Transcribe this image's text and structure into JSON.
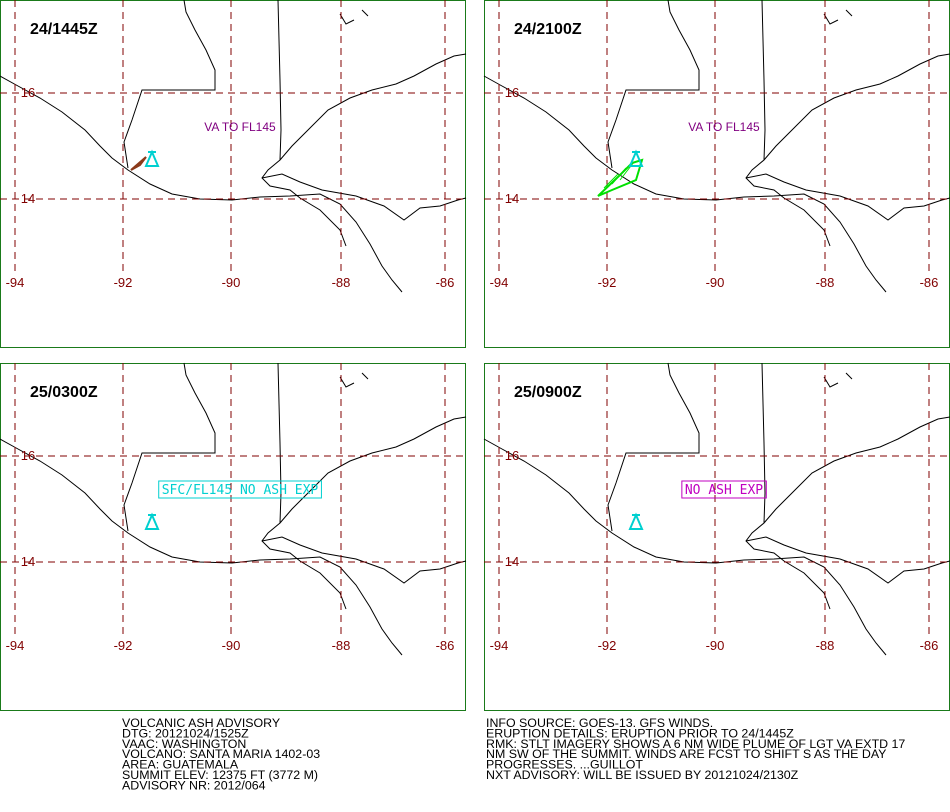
{
  "panels": [
    {
      "time": "24/1445Z",
      "label": "VA TO FL145"
    },
    {
      "time": "24/2100Z",
      "label": "VA TO FL145"
    },
    {
      "time": "25/0300Z",
      "label": "SFC/FL145 NO ASH EXP"
    },
    {
      "time": "25/0900Z",
      "label": "NO ASH EXP"
    }
  ],
  "grid": {
    "lat_labels": [
      "16",
      "14"
    ],
    "lon_labels": [
      "-94",
      "-92",
      "-90",
      "-88",
      "-86"
    ]
  },
  "advisory": {
    "left": [
      "VOLCANIC ASH ADVISORY",
      "DTG: 20121024/1525Z",
      "VAAC: WASHINGTON",
      "VOLCANO: SANTA MARIA 1402-03",
      "AREA: GUATEMALA",
      "SUMMIT ELEV: 12375 FT (3772 M)",
      "ADVISORY NR: 2012/064"
    ],
    "right": [
      "INFO SOURCE: GOES-13. GFS WINDS.",
      "ERUPTION DETAILS: ERUPTION PRIOR TO 24/1445Z",
      "RMK: STLT IMAGERY SHOWS A 6 NM WIDE PLUME OF LGT VA EXTD 17",
      "NM SW OF THE SUMMIT. WINDS ARE FCST TO SHIFT S AS THE DAY",
      "PROGRESSES. ...GUILLOT",
      "NXT ADVISORY: WILL BE ISSUED BY 20121024/2130Z"
    ]
  }
}
